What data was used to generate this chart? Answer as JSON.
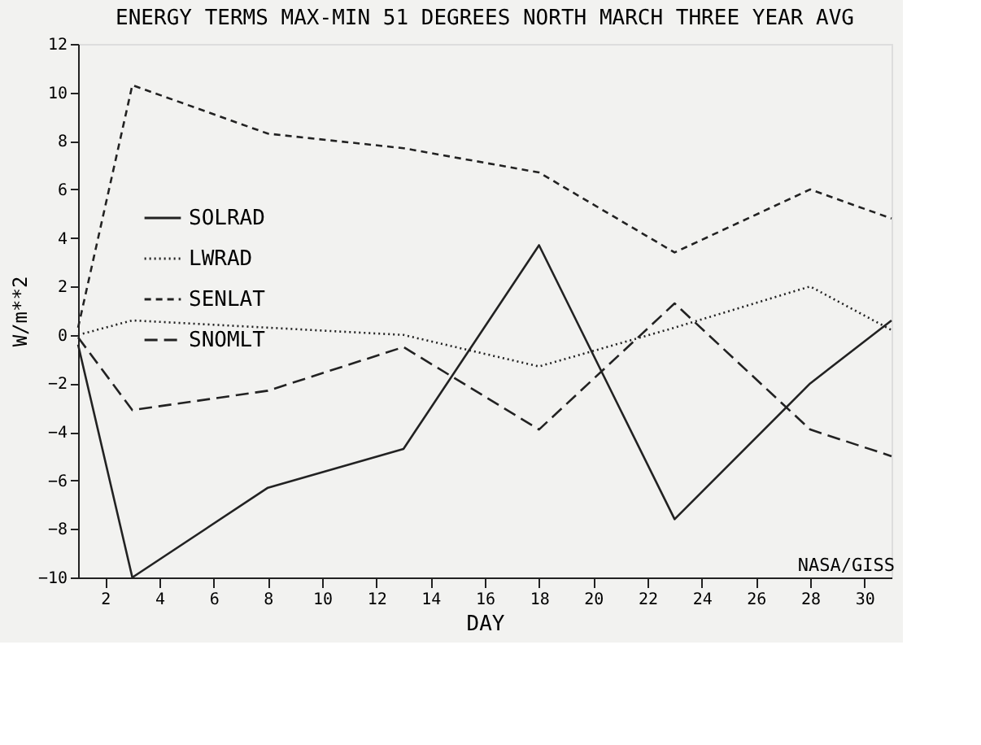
{
  "chart_data": {
    "type": "line",
    "title": "ENERGY TERMS MAX-MIN 51 DEGREES NORTH MARCH THREE YEAR AVG",
    "xlabel": "DAY",
    "ylabel": "W/m**2",
    "x": [
      1,
      3,
      8,
      13,
      18,
      23,
      28,
      31
    ],
    "xlim": [
      1,
      31
    ],
    "xticks": [
      2,
      4,
      6,
      8,
      10,
      12,
      14,
      16,
      18,
      20,
      22,
      24,
      26,
      28,
      30
    ],
    "ylim": [
      -10,
      12
    ],
    "yticks": [
      -10,
      -8,
      -6,
      -4,
      -2,
      0,
      2,
      4,
      6,
      8,
      10,
      12
    ],
    "grid": false,
    "legend": "top left",
    "marker": "none",
    "annotations": [
      "NASA/GISS"
    ],
    "series": [
      {
        "name": "SOLRAD",
        "color": "#222222",
        "line_style": "solid",
        "values": [
          -0.4,
          -10,
          -6.3,
          -4.7,
          3.7,
          -7.6,
          -2,
          0.6
        ]
      },
      {
        "name": "LWRAD",
        "color": "#222222",
        "line_style": "dotted",
        "values": [
          0,
          0.6,
          0.3,
          0,
          -1.3,
          0.3,
          2,
          0.2
        ]
      },
      {
        "name": "SENLAT",
        "color": "#222222",
        "line_style": "dashed",
        "values": [
          0.3,
          10.3,
          8.3,
          7.7,
          6.7,
          3.4,
          6,
          4.8
        ]
      },
      {
        "name": "SNOMLT",
        "color": "#222222",
        "line_style": "longdash",
        "values": [
          -0.1,
          -3.1,
          -2.3,
          -0.5,
          -3.9,
          1.3,
          -3.9,
          -5
        ]
      }
    ]
  }
}
